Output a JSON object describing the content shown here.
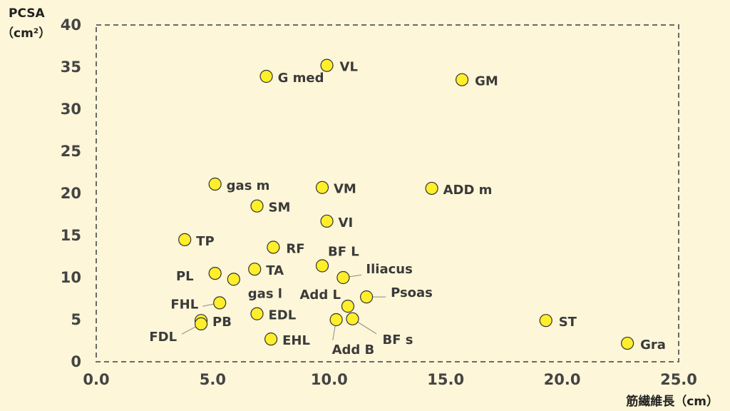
{
  "chart_data": {
    "type": "scatter",
    "ylabel_line1": "PCSA",
    "ylabel_line2": "（cm²）",
    "xlabel": "筋繊維長（cm）",
    "xlim": [
      0,
      25
    ],
    "ylim": [
      0,
      40
    ],
    "x_ticks": [
      "0.0",
      "5.0",
      "10.0",
      "15.0",
      "20.0",
      "25.0"
    ],
    "y_ticks": [
      "0",
      "5",
      "10",
      "15",
      "20",
      "25",
      "30",
      "35",
      "40"
    ],
    "marker_color": "#ffef2a",
    "marker_edge": "#333333",
    "background": "#fdf6d8",
    "border": "dashed",
    "points": [
      {
        "label": "VL",
        "x": 9.9,
        "y": 35.2
      },
      {
        "label": "G med",
        "x": 7.3,
        "y": 33.9
      },
      {
        "label": "GM",
        "x": 15.7,
        "y": 33.5
      },
      {
        "label": "gas m",
        "x": 5.1,
        "y": 21.1
      },
      {
        "label": "VM",
        "x": 9.7,
        "y": 20.7
      },
      {
        "label": "ADD m",
        "x": 14.4,
        "y": 20.6
      },
      {
        "label": "SM",
        "x": 6.9,
        "y": 18.5
      },
      {
        "label": "VI",
        "x": 9.9,
        "y": 16.7
      },
      {
        "label": "TP",
        "x": 3.8,
        "y": 14.5
      },
      {
        "label": "RF",
        "x": 7.6,
        "y": 13.6
      },
      {
        "label": "BF L",
        "x": 9.7,
        "y": 11.4
      },
      {
        "label": "TA",
        "x": 6.8,
        "y": 11.0
      },
      {
        "label": "PL",
        "x": 5.1,
        "y": 10.5
      },
      {
        "label": "Iliacus",
        "x": 10.6,
        "y": 10.0
      },
      {
        "label": "gas l",
        "x": 5.9,
        "y": 9.8
      },
      {
        "label": "Psoas",
        "x": 11.6,
        "y": 7.7
      },
      {
        "label": "FHL",
        "x": 5.3,
        "y": 7.0
      },
      {
        "label": "Add L",
        "x": 10.8,
        "y": 6.6
      },
      {
        "label": "EDL",
        "x": 6.9,
        "y": 5.7
      },
      {
        "label": "BF s",
        "x": 11.0,
        "y": 5.1
      },
      {
        "label": "Add B",
        "x": 10.3,
        "y": 5.0
      },
      {
        "label": "PB",
        "x": 4.5,
        "y": 4.9
      },
      {
        "label": "ST",
        "x": 19.3,
        "y": 4.9
      },
      {
        "label": "FDL",
        "x": 4.5,
        "y": 4.5
      },
      {
        "label": "EHL",
        "x": 7.5,
        "y": 2.7
      },
      {
        "label": "Gra",
        "x": 22.8,
        "y": 2.2
      }
    ]
  }
}
